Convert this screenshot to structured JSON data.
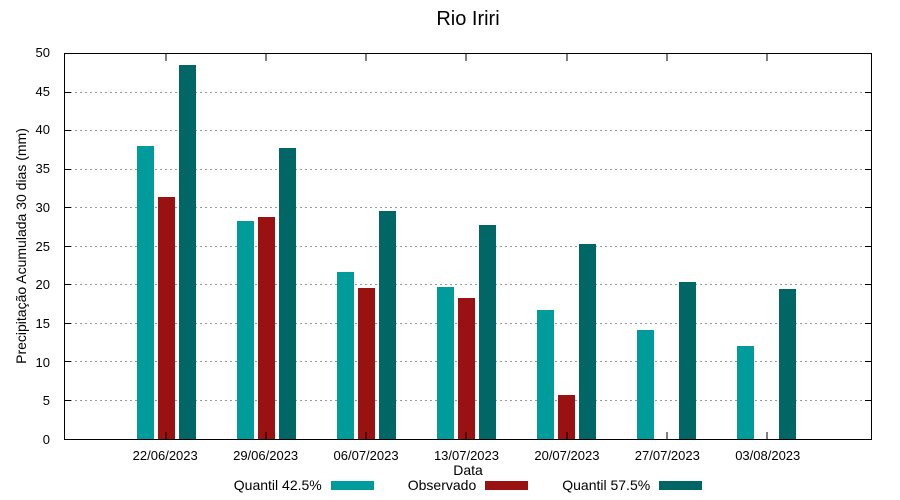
{
  "title": "Rio Iriri",
  "chart_data": {
    "type": "bar",
    "title": "Rio Iriri",
    "categories": [
      "22/06/2023",
      "29/06/2023",
      "06/07/2023",
      "13/07/2023",
      "20/07/2023",
      "27/07/2023",
      "03/08/2023"
    ],
    "series": [
      {
        "name": "Quantil 42.5%",
        "color": "#009C9C",
        "values": [
          38.0,
          28.3,
          21.7,
          19.8,
          16.8,
          14.2,
          12.1
        ]
      },
      {
        "name": "Observado",
        "color": "#991111",
        "values": [
          31.4,
          28.8,
          19.6,
          18.3,
          5.7,
          null,
          null
        ]
      },
      {
        "name": "Quantil 57.5%",
        "color": "#006666",
        "values": [
          48.6,
          37.8,
          29.6,
          27.8,
          25.3,
          20.4,
          19.5
        ]
      }
    ],
    "xlabel": "Data",
    "ylabel": "Precipitação Acumulada 30 dias (mm)",
    "ylim": [
      0,
      50
    ],
    "ytick_step": 5,
    "grid": true,
    "grid_color": "#9a9a9a",
    "legend_position": "bottom"
  }
}
